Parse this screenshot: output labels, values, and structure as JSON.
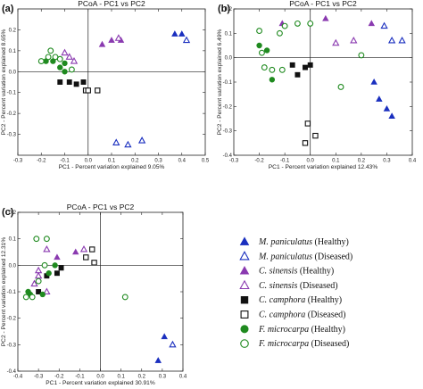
{
  "colors": {
    "blue": "#1a2fbf",
    "purple": "#8a3ab0",
    "black": "#111111",
    "green": "#1f8a1f"
  },
  "legend": [
    {
      "species": "M. paniculatus",
      "status": "(Healthy)",
      "color": "#1a2fbf",
      "shape": "triangle",
      "filled": true
    },
    {
      "species": "M. paniculatus",
      "status": "(Diseased)",
      "color": "#1a2fbf",
      "shape": "triangle",
      "filled": false
    },
    {
      "species": "C. sinensis",
      "status": "(Healthy)",
      "color": "#8a3ab0",
      "shape": "triangle",
      "filled": true
    },
    {
      "species": "C. sinensis",
      "status": "(Diseased)",
      "color": "#8a3ab0",
      "shape": "triangle",
      "filled": false
    },
    {
      "species": "C. camphora",
      "status": "(Healthy)",
      "color": "#111111",
      "shape": "square",
      "filled": true
    },
    {
      "species": "C. camphora",
      "status": "(Diseased)",
      "color": "#111111",
      "shape": "square",
      "filled": false
    },
    {
      "species": "F. microcarpa",
      "status": "(Healthy)",
      "color": "#1f8a1f",
      "shape": "circle",
      "filled": true
    },
    {
      "species": "F. microcarpa",
      "status": "(Diseased)",
      "color": "#1f8a1f",
      "shape": "circle",
      "filled": false
    }
  ],
  "chart_data": [
    {
      "panel_label": "(a)",
      "type": "scatter",
      "title": "PCoA - PC1 vs PC2",
      "xlabel": "PC1 - Percent variation explained 9.05%",
      "ylabel": "PC2 - Percent variation explained 8.65%",
      "xlim": [
        -0.3,
        0.5
      ],
      "ylim": [
        -0.4,
        0.3
      ],
      "xticks": [
        -0.3,
        -0.2,
        -0.1,
        0.0,
        0.1,
        0.2,
        0.3,
        0.4,
        0.5
      ],
      "xtick_labels": [
        "-0.3",
        "-0.2",
        "-0.1",
        "0.0",
        "0.1",
        "0.2",
        "0.3",
        "0.4",
        "0.5"
      ],
      "yticks": [
        -0.3,
        -0.2,
        -0.1,
        0.0,
        0.1,
        0.2
      ],
      "ytick_labels": [
        "-0.3",
        "-0.2",
        "-0.1",
        "0.0",
        "0.1",
        "0.2"
      ],
      "series": [
        {
          "legend": 0,
          "points": [
            [
              0.37,
              0.18
            ],
            [
              0.4,
              0.18
            ]
          ]
        },
        {
          "legend": 1,
          "points": [
            [
              0.12,
              -0.34
            ],
            [
              0.17,
              -0.35
            ],
            [
              0.23,
              -0.33
            ],
            [
              0.42,
              0.15
            ]
          ]
        },
        {
          "legend": 2,
          "points": [
            [
              0.1,
              0.15
            ],
            [
              0.14,
              0.15
            ],
            [
              0.06,
              0.13
            ]
          ]
        },
        {
          "legend": 3,
          "points": [
            [
              0.13,
              0.16
            ],
            [
              -0.1,
              0.09
            ],
            [
              -0.08,
              0.07
            ],
            [
              -0.06,
              0.05
            ]
          ]
        },
        {
          "legend": 4,
          "points": [
            [
              -0.12,
              -0.05
            ],
            [
              -0.08,
              -0.05
            ],
            [
              -0.05,
              -0.06
            ],
            [
              -0.02,
              -0.05
            ]
          ]
        },
        {
          "legend": 5,
          "points": [
            [
              -0.01,
              -0.09
            ],
            [
              0.0,
              -0.09
            ],
            [
              0.04,
              -0.09
            ]
          ]
        },
        {
          "legend": 6,
          "points": [
            [
              -0.18,
              0.05
            ],
            [
              -0.12,
              0.02
            ],
            [
              -0.1,
              0.0
            ],
            [
              -0.15,
              0.05
            ],
            [
              -0.1,
              0.04
            ]
          ]
        },
        {
          "legend": 7,
          "points": [
            [
              -0.16,
              0.1
            ],
            [
              -0.2,
              0.05
            ],
            [
              -0.17,
              0.07
            ],
            [
              -0.14,
              0.07
            ],
            [
              -0.12,
              0.06
            ],
            [
              -0.07,
              0.01
            ]
          ]
        }
      ]
    },
    {
      "panel_label": "(b)",
      "type": "scatter",
      "title": "PCoA - PC1 vs PC2",
      "xlabel": "PC1 - Percent variation explained 12.43%",
      "ylabel": "PC2 - Percent variation explained 6.49%",
      "xlim": [
        -0.3,
        0.4
      ],
      "ylim": [
        -0.4,
        0.2
      ],
      "xticks": [
        -0.3,
        -0.2,
        -0.1,
        0.0,
        0.1,
        0.2,
        0.3,
        0.4
      ],
      "xtick_labels": [
        "-0.3",
        "-0.2",
        "-0.1",
        "0.0",
        "0.1",
        "0.2",
        "0.3",
        "0.4"
      ],
      "yticks": [
        -0.4,
        -0.3,
        -0.2,
        -0.1,
        0.0,
        0.1,
        0.2
      ],
      "ytick_labels": [
        "-0.4",
        "-0.3",
        "-0.2",
        "-0.1",
        "0.0",
        "0.1",
        "0.2"
      ],
      "series": [
        {
          "legend": 0,
          "points": [
            [
              0.25,
              -0.1
            ],
            [
              0.27,
              -0.17
            ],
            [
              0.3,
              -0.21
            ],
            [
              0.32,
              -0.24
            ]
          ]
        },
        {
          "legend": 1,
          "points": [
            [
              0.29,
              0.13
            ],
            [
              0.32,
              0.07
            ],
            [
              0.36,
              0.07
            ]
          ]
        },
        {
          "legend": 2,
          "points": [
            [
              -0.11,
              0.14
            ],
            [
              0.06,
              0.16
            ],
            [
              0.24,
              0.14
            ]
          ]
        },
        {
          "legend": 3,
          "points": [
            [
              0.17,
              0.07
            ],
            [
              0.1,
              0.06
            ]
          ]
        },
        {
          "legend": 4,
          "points": [
            [
              -0.07,
              -0.03
            ],
            [
              -0.05,
              -0.07
            ],
            [
              -0.02,
              -0.04
            ],
            [
              0.0,
              -0.03
            ]
          ]
        },
        {
          "legend": 5,
          "points": [
            [
              -0.01,
              -0.27
            ],
            [
              0.02,
              -0.32
            ],
            [
              -0.02,
              -0.35
            ]
          ]
        },
        {
          "legend": 6,
          "points": [
            [
              -0.2,
              0.05
            ],
            [
              -0.17,
              0.03
            ],
            [
              -0.15,
              -0.09
            ]
          ]
        },
        {
          "legend": 7,
          "points": [
            [
              -0.2,
              0.11
            ],
            [
              -0.12,
              0.1
            ],
            [
              -0.1,
              0.13
            ],
            [
              -0.05,
              0.14
            ],
            [
              0.0,
              0.14
            ],
            [
              -0.19,
              0.02
            ],
            [
              -0.18,
              -0.04
            ],
            [
              -0.15,
              -0.05
            ],
            [
              -0.11,
              -0.05
            ],
            [
              0.12,
              -0.12
            ],
            [
              0.2,
              0.01
            ]
          ]
        }
      ]
    },
    {
      "panel_label": "(c)",
      "type": "scatter",
      "title": "PCoA - PC1 vs PC2",
      "xlabel": "PC1 - Percent variation explained 30.91%",
      "ylabel": "PC2 - Percent variation explained 12.31%",
      "xlim": [
        -0.4,
        0.4
      ],
      "ylim": [
        -0.4,
        0.2
      ],
      "xticks": [
        -0.4,
        -0.3,
        -0.2,
        -0.1,
        0.0,
        0.1,
        0.2,
        0.3,
        0.4
      ],
      "xtick_labels": [
        "-0.4",
        "-0.3",
        "-0.2",
        "-0.1",
        "0.0",
        "0.1",
        "0.2",
        "0.3",
        "0.4"
      ],
      "yticks": [
        -0.4,
        -0.3,
        -0.2,
        -0.1,
        0.0,
        0.1,
        0.2
      ],
      "ytick_labels": [
        "-0.4",
        "-0.3",
        "-0.2",
        "-0.1",
        "0.0",
        "0.1",
        "0.2"
      ],
      "series": [
        {
          "legend": 0,
          "points": [
            [
              0.31,
              -0.27
            ],
            [
              0.28,
              -0.36
            ]
          ]
        },
        {
          "legend": 1,
          "points": [
            [
              0.35,
              -0.3
            ]
          ]
        },
        {
          "legend": 2,
          "points": [
            [
              -0.12,
              0.05
            ],
            [
              -0.21,
              0.03
            ]
          ]
        },
        {
          "legend": 3,
          "points": [
            [
              -0.26,
              0.06
            ],
            [
              -0.08,
              0.06
            ],
            [
              -0.3,
              -0.02
            ],
            [
              -0.3,
              -0.04
            ],
            [
              -0.32,
              -0.07
            ],
            [
              -0.26,
              -0.1
            ]
          ]
        },
        {
          "legend": 4,
          "points": [
            [
              -0.19,
              -0.01
            ],
            [
              -0.21,
              -0.03
            ],
            [
              -0.26,
              -0.04
            ],
            [
              -0.3,
              -0.1
            ]
          ]
        },
        {
          "legend": 5,
          "points": [
            [
              -0.04,
              0.06
            ],
            [
              -0.07,
              0.03
            ],
            [
              -0.03,
              0.01
            ]
          ]
        },
        {
          "legend": 6,
          "points": [
            [
              -0.22,
              0.0
            ],
            [
              -0.25,
              -0.03
            ],
            [
              -0.34,
              -0.11
            ],
            [
              -0.35,
              -0.1
            ],
            [
              -0.28,
              -0.11
            ]
          ]
        },
        {
          "legend": 7,
          "points": [
            [
              -0.31,
              0.1
            ],
            [
              -0.26,
              0.1
            ],
            [
              -0.27,
              0.0
            ],
            [
              -0.36,
              -0.12
            ],
            [
              -0.33,
              -0.12
            ],
            [
              -0.3,
              -0.06
            ],
            [
              0.12,
              -0.12
            ]
          ]
        }
      ]
    }
  ]
}
